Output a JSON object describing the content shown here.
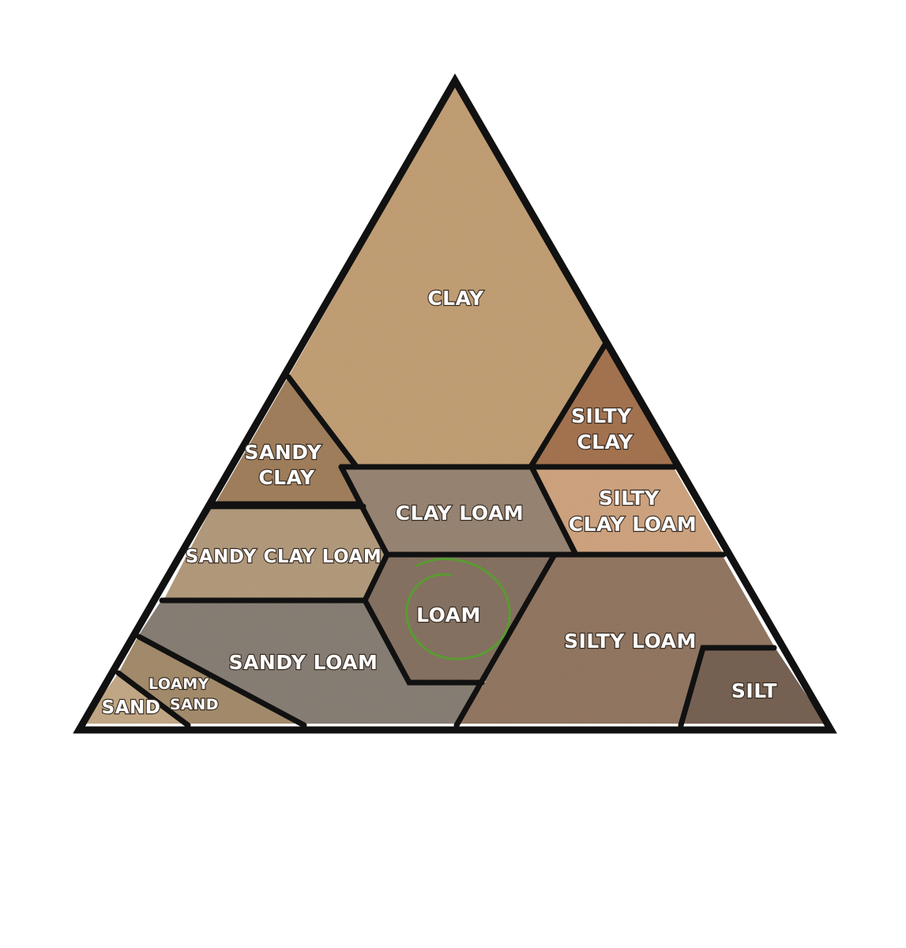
{
  "regions": {
    "clay": {
      "lines": [
        "CLAY"
      ],
      "color": "#c7a378"
    },
    "sandy_clay": {
      "lines": [
        "SANDY",
        "CLAY"
      ],
      "color": "#a5825f"
    },
    "silty_clay": {
      "lines": [
        "SILTY",
        "CLAY"
      ],
      "color": "#a97753"
    },
    "clay_loam": {
      "lines": [
        "CLAY LOAM"
      ],
      "color": "#9c8876"
    },
    "silty_clay_loam": {
      "lines": [
        "SILTY",
        "CLAY LOAM"
      ],
      "color": "#d4a883"
    },
    "sandy_clay_loam": {
      "lines": [
        "SANDY CLAY LOAM"
      ],
      "color": "#b79e80"
    },
    "loam": {
      "lines": [
        "LOAM"
      ],
      "color": "#8a7565"
    },
    "silty_loam": {
      "lines": [
        "SILTY LOAM"
      ],
      "color": "#967a65"
    },
    "sandy_loam": {
      "lines": [
        "SANDY LOAM"
      ],
      "color": "#8b8278"
    },
    "loamy_sand": {
      "lines": [
        "LOAMY",
        "SAND"
      ],
      "color": "#a8906f"
    },
    "sand": {
      "lines": [
        "SAND"
      ],
      "color": "#c8ad8a"
    },
    "silt": {
      "lines": [
        "SILT"
      ],
      "color": "#7a6556"
    }
  },
  "outline_color": "#111111",
  "highlight": {
    "region": "loam",
    "color": "#5a9b32"
  }
}
